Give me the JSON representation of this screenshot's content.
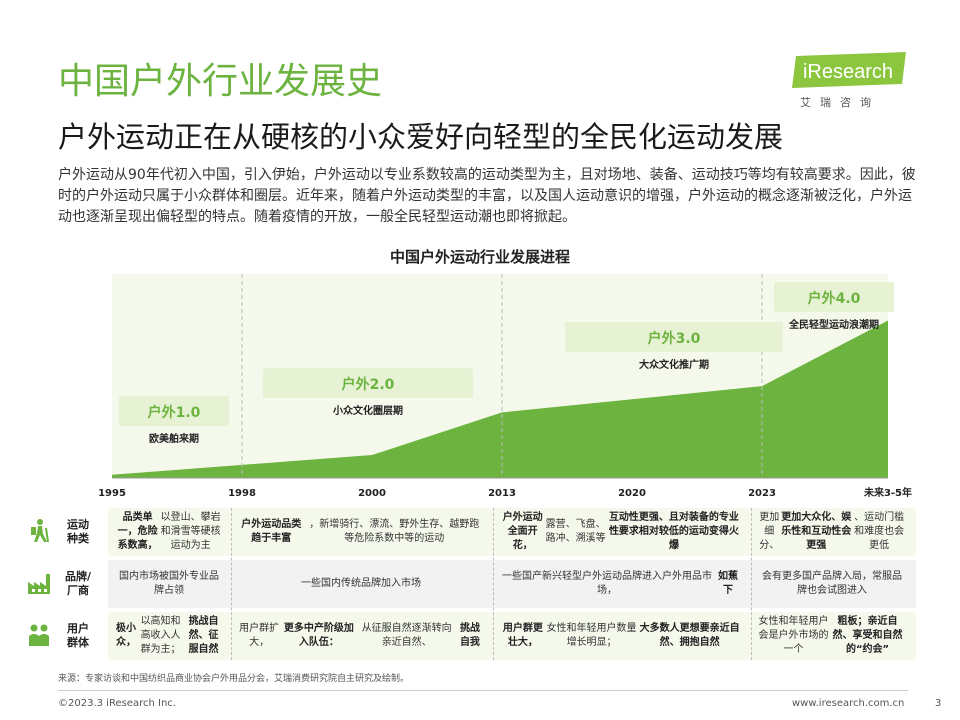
{
  "header": {
    "title": "中国户外行业发展史",
    "subtitle": "户外运动正在从硬核的小众爱好向轻型的全民化运动发展",
    "intro": "户外运动从90年代初入中国，引入伊始，户外运动以专业系数较高的运动类型为主，且对场地、装备、运动技巧等均有较高要求。因此，彼时的户外运动只属于小众群体和圈层。近年来，随着户外运动类型的丰富，以及国人运动意识的增强，户外运动的概念逐渐被泛化，户外运动也逐渐呈现出偏轻型的特点。随着疫情的开放，一般全民轻型运动潮也即将掀起。"
  },
  "logo": {
    "brand": "iResearch",
    "cn": "艾瑞咨询"
  },
  "colors": {
    "accent": "#6cb33f",
    "area_light": "#e7f2d4",
    "band": "#f4f9ec",
    "row_alt": "#f2f2f2"
  },
  "chart_title": "中国户外运动行业发展进程",
  "chart_data": {
    "type": "area",
    "title": "中国户外运动行业发展进程",
    "x": [
      "1995",
      "1998",
      "2000",
      "2013",
      "2020",
      "2023",
      "未来3-5年"
    ],
    "values": [
      2,
      8,
      14,
      40,
      48,
      56,
      96
    ],
    "ylim": [
      0,
      100
    ],
    "phases": [
      {
        "name": "户外1.0",
        "desc": "欧美舶来期"
      },
      {
        "name": "户外2.0",
        "desc": "小众文化圈层期"
      },
      {
        "name": "户外3.0",
        "desc": "大众文化推广期"
      },
      {
        "name": "户外4.0",
        "desc": "全民轻型运动浪潮期"
      }
    ]
  },
  "table": {
    "rows": [
      {
        "label": "运动\n种类",
        "icon": "hiker-icon",
        "cells": [
          "<b>品类单一，危险系数高，</b>以登山、攀岩和滑雪等硬核运动为主",
          "<b>户外运动品类趋于丰富</b>，新增骑行、漂流、野外生存、越野跑等危险系数中等的运动",
          "<b>户外运动全面开花，</b>露营、飞盘、路冲、溯溪等<b>互动性更强、且对装备的专业性要求相对较低的运动变得火爆</b>",
          "更加细分、<b>更加大众化、娱乐性和互动性会更强</b>、运动门槛和难度也会更低"
        ]
      },
      {
        "label": "品牌/\n厂商",
        "icon": "factory-icon",
        "cells": [
          "国内市场被国外专业品牌占领",
          "一些国内传统品牌加入市场",
          "一些国产新兴轻型户外运动品牌进入户外用品市场，<b>如蕉下</b>",
          "会有更多国产品牌入局，常服品牌也会试图进入"
        ]
      },
      {
        "label": "用户\n群体",
        "icon": "people-icon",
        "cells": [
          "<b>极小众，</b>以高知和高收入人群为主；<b>挑战自然、征服自然</b>",
          "用户群扩大，<b>更多中产阶级加入队伍：</b>从征服自然逐渐转向亲近自然、<b>挑战自我</b>",
          "<b>用户群更壮大，</b>女性和年轻用户数量增长明显；<b>大多数人更想要亲近自然、拥抱自然</b>",
          "女性和年轻用户会是户外市场的一个<b>粗板；亲近自然、享受和自然的“约会”</b>"
        ]
      }
    ]
  },
  "source": "来源：专家访谈和中国纺织品商业协会户外用品分会，艾瑞消费研究院自主研究及绘制。",
  "footer": {
    "copyright": "©2023.3 iResearch Inc.",
    "url": "www.iresearch.com.cn",
    "page": "3"
  }
}
